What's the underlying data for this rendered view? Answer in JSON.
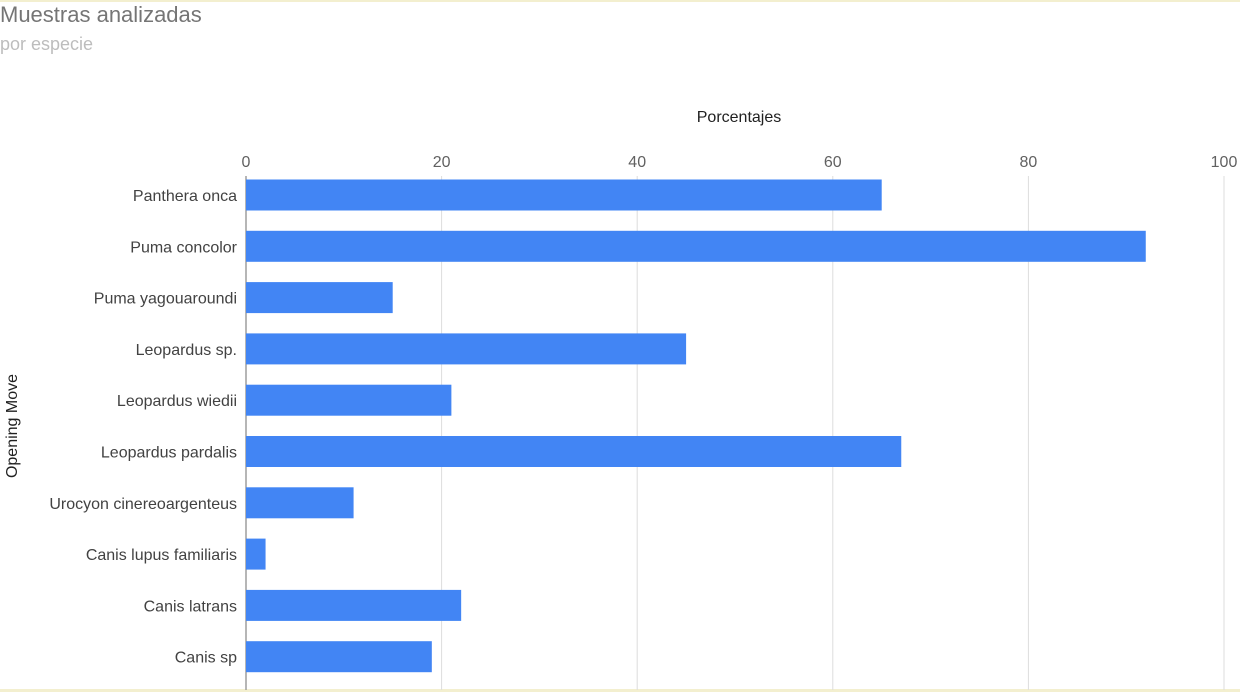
{
  "header": {
    "title": "Muestras analizadas",
    "subtitle": "por especie"
  },
  "colors": {
    "bar": "#4285f4",
    "grid": "#dddddd",
    "axis": "#9e9e9e"
  },
  "chart_data": {
    "type": "bar",
    "orientation": "horizontal",
    "title": "Muestras analizadas",
    "subtitle": "por especie",
    "xlabel": "Porcentajes",
    "ylabel": "Opening Move",
    "xlim": [
      0,
      100
    ],
    "x_ticks": [
      0,
      20,
      40,
      60,
      80,
      100
    ],
    "x_axis_position": "top",
    "grid": true,
    "legend": "none",
    "categories": [
      "Panthera onca",
      "Puma concolor",
      "Puma yagouaroundi",
      "Leopardus sp.",
      "Leopardus wiedii",
      "Leopardus pardalis",
      "Urocyon cinereoargenteus",
      "Canis lupus familiaris",
      "Canis latrans",
      "Canis sp"
    ],
    "values": [
      65,
      92,
      15,
      45,
      21,
      67,
      11,
      2,
      22,
      19
    ]
  }
}
